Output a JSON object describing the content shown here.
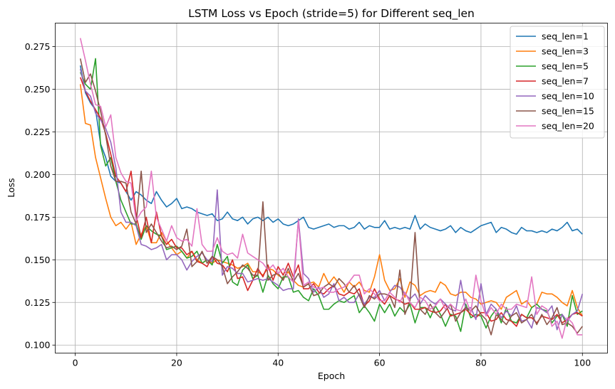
{
  "chart_data": {
    "type": "line",
    "title": "LSTM Loss vs Epoch (stride=5) for Different seq_len",
    "xlabel": "Epoch",
    "ylabel": "Loss",
    "xlim": [
      -3.95,
      104.95
    ],
    "ylim": [
      0.0953,
      0.2888
    ],
    "xticks": [
      0,
      20,
      40,
      60,
      80,
      100
    ],
    "xtick_labels": [
      "0",
      "20",
      "40",
      "60",
      "80",
      "100"
    ],
    "yticks": [
      0.1,
      0.125,
      0.15,
      0.175,
      0.2,
      0.225,
      0.25,
      0.275
    ],
    "ytick_labels": [
      "0.100",
      "0.125",
      "0.150",
      "0.175",
      "0.200",
      "0.225",
      "0.250",
      "0.275"
    ],
    "grid": true,
    "legend_position": "top-right",
    "x": [
      1,
      2,
      3,
      4,
      5,
      6,
      7,
      8,
      9,
      10,
      11,
      12,
      13,
      14,
      15,
      16,
      17,
      18,
      19,
      20,
      21,
      22,
      23,
      24,
      25,
      26,
      27,
      28,
      29,
      30,
      31,
      32,
      33,
      34,
      35,
      36,
      37,
      38,
      39,
      40,
      41,
      42,
      43,
      44,
      45,
      46,
      47,
      48,
      49,
      50,
      51,
      52,
      53,
      54,
      55,
      56,
      57,
      58,
      59,
      60,
      61,
      62,
      63,
      64,
      65,
      66,
      67,
      68,
      69,
      70,
      71,
      72,
      73,
      74,
      75,
      76,
      77,
      78,
      79,
      80,
      81,
      82,
      83,
      84,
      85,
      86,
      87,
      88,
      89,
      90,
      91,
      92,
      93,
      94,
      95,
      96,
      97,
      98,
      99,
      100
    ],
    "series": [
      {
        "name": "seq_len=1",
        "color": "#1f77b4",
        "values": [
          0.264,
          0.248,
          0.242,
          0.238,
          0.218,
          0.21,
          0.199,
          0.196,
          0.195,
          0.19,
          0.185,
          0.19,
          0.188,
          0.185,
          0.183,
          0.19,
          0.185,
          0.181,
          0.183,
          0.186,
          0.18,
          0.181,
          0.18,
          0.178,
          0.177,
          0.176,
          0.177,
          0.173,
          0.174,
          0.178,
          0.174,
          0.173,
          0.175,
          0.171,
          0.174,
          0.175,
          0.173,
          0.175,
          0.172,
          0.174,
          0.171,
          0.17,
          0.171,
          0.173,
          0.175,
          0.169,
          0.168,
          0.169,
          0.17,
          0.171,
          0.169,
          0.17,
          0.17,
          0.168,
          0.169,
          0.172,
          0.168,
          0.17,
          0.169,
          0.169,
          0.173,
          0.168,
          0.169,
          0.168,
          0.169,
          0.168,
          0.176,
          0.168,
          0.171,
          0.169,
          0.168,
          0.167,
          0.168,
          0.17,
          0.166,
          0.169,
          0.167,
          0.166,
          0.168,
          0.17,
          0.171,
          0.172,
          0.166,
          0.169,
          0.168,
          0.166,
          0.165,
          0.169,
          0.167,
          0.167,
          0.166,
          0.167,
          0.166,
          0.168,
          0.167,
          0.169,
          0.172,
          0.167,
          0.168,
          0.165
        ]
      },
      {
        "name": "seq_len=3",
        "color": "#ff7f0e",
        "values": [
          0.253,
          0.23,
          0.229,
          0.21,
          0.198,
          0.186,
          0.175,
          0.17,
          0.172,
          0.168,
          0.172,
          0.159,
          0.165,
          0.17,
          0.16,
          0.16,
          0.166,
          0.161,
          0.157,
          0.153,
          0.155,
          0.151,
          0.155,
          0.15,
          0.148,
          0.15,
          0.148,
          0.15,
          0.149,
          0.148,
          0.147,
          0.145,
          0.146,
          0.148,
          0.143,
          0.143,
          0.141,
          0.145,
          0.144,
          0.141,
          0.139,
          0.143,
          0.138,
          0.135,
          0.134,
          0.136,
          0.137,
          0.134,
          0.142,
          0.136,
          0.14,
          0.136,
          0.131,
          0.137,
          0.134,
          0.137,
          0.132,
          0.131,
          0.14,
          0.153,
          0.138,
          0.132,
          0.133,
          0.139,
          0.128,
          0.137,
          0.135,
          0.129,
          0.131,
          0.132,
          0.131,
          0.137,
          0.135,
          0.13,
          0.129,
          0.131,
          0.131,
          0.128,
          0.127,
          0.124,
          0.125,
          0.126,
          0.125,
          0.121,
          0.128,
          0.13,
          0.132,
          0.124,
          0.126,
          0.122,
          0.124,
          0.131,
          0.13,
          0.13,
          0.128,
          0.125,
          0.123,
          0.132,
          0.122,
          0.117
        ]
      },
      {
        "name": "seq_len=5",
        "color": "#2ca02c",
        "values": [
          0.26,
          0.253,
          0.25,
          0.268,
          0.217,
          0.205,
          0.21,
          0.196,
          0.185,
          0.178,
          0.171,
          0.171,
          0.162,
          0.17,
          0.167,
          0.165,
          0.164,
          0.156,
          0.157,
          0.158,
          0.155,
          0.151,
          0.152,
          0.155,
          0.148,
          0.15,
          0.147,
          0.159,
          0.148,
          0.152,
          0.137,
          0.135,
          0.144,
          0.147,
          0.139,
          0.141,
          0.131,
          0.141,
          0.136,
          0.133,
          0.14,
          0.14,
          0.131,
          0.132,
          0.128,
          0.126,
          0.133,
          0.129,
          0.121,
          0.121,
          0.124,
          0.126,
          0.125,
          0.127,
          0.129,
          0.119,
          0.123,
          0.119,
          0.114,
          0.124,
          0.119,
          0.124,
          0.117,
          0.122,
          0.119,
          0.124,
          0.113,
          0.122,
          0.122,
          0.116,
          0.123,
          0.118,
          0.111,
          0.118,
          0.117,
          0.108,
          0.124,
          0.116,
          0.118,
          0.117,
          0.11,
          0.117,
          0.121,
          0.113,
          0.122,
          0.114,
          0.113,
          0.118,
          0.116,
          0.122,
          0.124,
          0.121,
          0.12,
          0.113,
          0.117,
          0.118,
          0.111,
          0.129,
          0.118,
          0.12
        ]
      },
      {
        "name": "seq_len=7",
        "color": "#d62728",
        "values": [
          0.257,
          0.249,
          0.243,
          0.238,
          0.233,
          0.224,
          0.212,
          0.199,
          0.195,
          0.19,
          0.202,
          0.176,
          0.163,
          0.175,
          0.16,
          0.178,
          0.164,
          0.159,
          0.162,
          0.157,
          0.157,
          0.153,
          0.155,
          0.149,
          0.148,
          0.146,
          0.152,
          0.148,
          0.147,
          0.143,
          0.15,
          0.139,
          0.14,
          0.132,
          0.138,
          0.145,
          0.14,
          0.147,
          0.138,
          0.146,
          0.141,
          0.148,
          0.14,
          0.147,
          0.133,
          0.133,
          0.136,
          0.131,
          0.13,
          0.133,
          0.135,
          0.13,
          0.129,
          0.131,
          0.13,
          0.133,
          0.123,
          0.126,
          0.133,
          0.127,
          0.124,
          0.129,
          0.127,
          0.126,
          0.124,
          0.125,
          0.121,
          0.121,
          0.122,
          0.12,
          0.119,
          0.12,
          0.124,
          0.117,
          0.118,
          0.119,
          0.121,
          0.118,
          0.116,
          0.119,
          0.119,
          0.114,
          0.115,
          0.119,
          0.115,
          0.114,
          0.111,
          0.118,
          0.116,
          0.116,
          0.113,
          0.117,
          0.116,
          0.115,
          0.118,
          0.113,
          0.115,
          0.118,
          0.119,
          0.117
        ]
      },
      {
        "name": "seq_len=10",
        "color": "#9467bd",
        "values": [
          0.262,
          0.249,
          0.246,
          0.236,
          0.232,
          0.227,
          0.219,
          0.204,
          0.178,
          0.172,
          0.172,
          0.17,
          0.159,
          0.158,
          0.156,
          0.157,
          0.159,
          0.15,
          0.153,
          0.153,
          0.15,
          0.144,
          0.149,
          0.152,
          0.154,
          0.15,
          0.149,
          0.191,
          0.141,
          0.146,
          0.145,
          0.142,
          0.142,
          0.137,
          0.138,
          0.139,
          0.138,
          0.139,
          0.137,
          0.135,
          0.132,
          0.133,
          0.133,
          0.174,
          0.142,
          0.139,
          0.131,
          0.134,
          0.128,
          0.13,
          0.136,
          0.126,
          0.128,
          0.125,
          0.125,
          0.13,
          0.124,
          0.128,
          0.128,
          0.132,
          0.126,
          0.131,
          0.135,
          0.134,
          0.13,
          0.127,
          0.13,
          0.124,
          0.129,
          0.126,
          0.124,
          0.127,
          0.124,
          0.121,
          0.12,
          0.138,
          0.121,
          0.122,
          0.115,
          0.136,
          0.118,
          0.124,
          0.121,
          0.116,
          0.12,
          0.117,
          0.123,
          0.114,
          0.115,
          0.11,
          0.122,
          0.121,
          0.119,
          0.123,
          0.109,
          0.118,
          0.114,
          0.118,
          0.12,
          0.13
        ]
      },
      {
        "name": "seq_len=15",
        "color": "#8c564b",
        "values": [
          0.268,
          0.254,
          0.259,
          0.249,
          0.237,
          0.223,
          0.205,
          0.196,
          0.196,
          0.195,
          0.178,
          0.171,
          0.202,
          0.166,
          0.171,
          0.166,
          0.161,
          0.157,
          0.158,
          0.156,
          0.158,
          0.168,
          0.146,
          0.149,
          0.155,
          0.148,
          0.152,
          0.15,
          0.146,
          0.136,
          0.14,
          0.143,
          0.147,
          0.145,
          0.141,
          0.141,
          0.184,
          0.138,
          0.141,
          0.142,
          0.138,
          0.145,
          0.137,
          0.142,
          0.134,
          0.136,
          0.129,
          0.13,
          0.134,
          0.136,
          0.134,
          0.139,
          0.136,
          0.131,
          0.135,
          0.129,
          0.122,
          0.129,
          0.127,
          0.13,
          0.13,
          0.129,
          0.122,
          0.144,
          0.118,
          0.126,
          0.166,
          0.121,
          0.118,
          0.124,
          0.119,
          0.116,
          0.12,
          0.124,
          0.114,
          0.119,
          0.122,
          0.12,
          0.123,
          0.118,
          0.115,
          0.106,
          0.118,
          0.115,
          0.112,
          0.117,
          0.119,
          0.113,
          0.115,
          0.118,
          0.112,
          0.118,
          0.112,
          0.116,
          0.122,
          0.112,
          0.113,
          0.111,
          0.107,
          0.111
        ]
      },
      {
        "name": "seq_len=20",
        "color": "#e377c2",
        "values": [
          0.28,
          0.267,
          0.253,
          0.241,
          0.24,
          0.228,
          0.235,
          0.21,
          0.201,
          0.196,
          0.195,
          0.173,
          0.178,
          0.181,
          0.202,
          0.175,
          0.168,
          0.161,
          0.17,
          0.163,
          0.161,
          0.162,
          0.158,
          0.18,
          0.159,
          0.155,
          0.155,
          0.163,
          0.155,
          0.153,
          0.154,
          0.151,
          0.165,
          0.154,
          0.152,
          0.15,
          0.148,
          0.144,
          0.147,
          0.142,
          0.145,
          0.14,
          0.137,
          0.173,
          0.135,
          0.137,
          0.134,
          0.133,
          0.134,
          0.131,
          0.131,
          0.133,
          0.134,
          0.137,
          0.141,
          0.141,
          0.13,
          0.133,
          0.13,
          0.126,
          0.126,
          0.131,
          0.128,
          0.125,
          0.131,
          0.125,
          0.122,
          0.128,
          0.126,
          0.121,
          0.123,
          0.127,
          0.121,
          0.124,
          0.121,
          0.12,
          0.127,
          0.119,
          0.141,
          0.126,
          0.117,
          0.122,
          0.118,
          0.124,
          0.121,
          0.121,
          0.124,
          0.123,
          0.122,
          0.14,
          0.118,
          0.123,
          0.121,
          0.111,
          0.114,
          0.104,
          0.116,
          0.113,
          0.106,
          0.106
        ]
      }
    ]
  }
}
